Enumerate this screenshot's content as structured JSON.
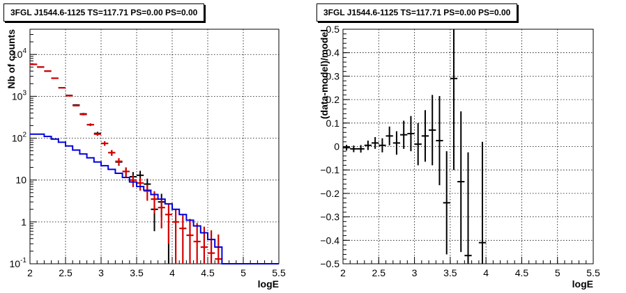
{
  "chart_data": [
    {
      "type": "scatter",
      "title": "3FGL J1544.6-1125 TS=117.71 PS=0.00 PS=0.00",
      "xlabel": "logE",
      "ylabel": "Nb of counts",
      "xlim": [
        2,
        5.5
      ],
      "ylim": [
        0.1,
        40000
      ],
      "yscale": "log",
      "grid": true,
      "x_ticks": [
        "2",
        "2.5",
        "3",
        "3.5",
        "4",
        "4.5",
        "5",
        "5.5"
      ],
      "y_ticks": [
        "10^{-1}",
        "1",
        "10",
        "10^{2}",
        "10^{3}",
        "10^{4}"
      ],
      "series": [
        {
          "color": "#000000",
          "kind": "data points with errors",
          "x": [
            2.05,
            2.15,
            2.25,
            2.35,
            2.45,
            2.55,
            2.65,
            2.75,
            2.85,
            2.95,
            3.05,
            3.15,
            3.25,
            3.35,
            3.45,
            3.55,
            3.65,
            3.75,
            3.85,
            3.95,
            4.05,
            4.15,
            4.25,
            4.35,
            4.45,
            4.55,
            4.65
          ],
          "y": [
            5800,
            5000,
            4000,
            2700,
            1600,
            1050,
            620,
            380,
            210,
            130,
            75,
            45,
            27,
            16,
            12,
            13,
            8,
            2,
            3,
            0.1,
            0.1,
            0.1,
            0.1,
            0.1,
            0.1,
            0.1,
            0.1
          ],
          "yerr_low": [
            80,
            70,
            60,
            50,
            40,
            30,
            25,
            20,
            15,
            12,
            9,
            7,
            5,
            4,
            3.5,
            3.6,
            2.8,
            1.4,
            1.7,
            0,
            0,
            0,
            0,
            0,
            0,
            0,
            0
          ],
          "yerr_high": [
            80,
            70,
            60,
            50,
            40,
            30,
            25,
            20,
            15,
            12,
            9,
            7,
            5,
            4,
            3.5,
            3.6,
            2.8,
            1.4,
            1.7,
            0.8,
            0,
            0,
            0,
            0,
            0,
            0,
            0
          ]
        },
        {
          "color": "#d40000",
          "kind": "model points with errors",
          "x": [
            2.05,
            2.15,
            2.25,
            2.35,
            2.45,
            2.55,
            2.65,
            2.75,
            2.85,
            2.95,
            3.05,
            3.15,
            3.25,
            3.35,
            3.45,
            3.55,
            3.65,
            3.75,
            3.85,
            3.95,
            4.05,
            4.15,
            4.25,
            4.35,
            4.45,
            4.55,
            4.65
          ],
          "y": [
            5800,
            5000,
            4000,
            2700,
            1600,
            1030,
            600,
            370,
            210,
            125,
            75,
            45,
            28,
            16,
            10,
            8.5,
            5.5,
            3.5,
            2.2,
            1.5,
            1.0,
            0.7,
            0.48,
            0.34,
            0.25,
            0.18,
            0.13
          ],
          "yerr_low": [
            75,
            70,
            63,
            52,
            40,
            32,
            24,
            19,
            14.5,
            11,
            8.7,
            6.7,
            5.3,
            4,
            3.2,
            2.9,
            2.3,
            1.9,
            1.5,
            1.2,
            0.9,
            0.6,
            0.38,
            0.24,
            0.15,
            0.08,
            0.03
          ],
          "yerr_high": [
            75,
            70,
            63,
            52,
            40,
            32,
            24,
            19,
            14.5,
            11,
            8.7,
            6.7,
            5.3,
            4,
            3.2,
            2.9,
            2.3,
            1.9,
            1.5,
            1.2,
            1.0,
            0.85,
            0.7,
            0.6,
            0.52,
            0.45,
            0.37
          ]
        },
        {
          "color": "#0000dd",
          "kind": "step histogram",
          "x_edges": [
            2.0,
            2.1,
            2.2,
            2.3,
            2.4,
            2.5,
            2.6,
            2.7,
            2.8,
            2.9,
            3.0,
            3.1,
            3.2,
            3.3,
            3.4,
            3.5,
            3.6,
            3.7,
            3.8,
            3.9,
            4.0,
            4.1,
            4.2,
            4.3,
            4.4,
            4.5,
            4.6,
            4.7,
            5.5
          ],
          "values": [
            125,
            125,
            110,
            95,
            80,
            65,
            52,
            42,
            34,
            27,
            22,
            18,
            14.5,
            11.5,
            9,
            7,
            5.7,
            4.5,
            3.5,
            2.7,
            2.0,
            1.5,
            1.1,
            0.8,
            0.55,
            0.38,
            0.25,
            0.1
          ]
        }
      ]
    },
    {
      "type": "scatter",
      "title": "3FGL J1544.6-1125 TS=117.71 PS=0.00 PS=0.00",
      "xlabel": "logE",
      "ylabel": "(data-model)/model",
      "xlim": [
        2,
        5.5
      ],
      "ylim": [
        -0.5,
        0.5
      ],
      "grid": true,
      "x_ticks": [
        "2",
        "2.5",
        "3",
        "3.5",
        "4",
        "4.5",
        "5",
        "5.5"
      ],
      "y_ticks": [
        "−0.5",
        "−0.4",
        "−0.3",
        "−0.2",
        "−0.1",
        "0",
        "0.1",
        "0.2",
        "0.3",
        "0.4",
        "0.5"
      ],
      "series": [
        {
          "color": "#000000",
          "x": [
            2.05,
            2.15,
            2.25,
            2.35,
            2.45,
            2.55,
            2.65,
            2.75,
            2.85,
            2.95,
            3.05,
            3.15,
            3.25,
            3.35,
            3.45,
            3.55,
            3.65,
            3.75,
            3.95
          ],
          "y": [
            -0.005,
            -0.01,
            -0.01,
            0.005,
            0.015,
            0.005,
            0.045,
            0.015,
            0.05,
            0.055,
            0.01,
            0.045,
            0.07,
            0.025,
            -0.24,
            0.29,
            -0.15,
            -0.465,
            -0.41
          ],
          "yerr": [
            0.012,
            0.014,
            0.016,
            0.02,
            0.025,
            0.03,
            0.04,
            0.05,
            0.06,
            0.075,
            0.09,
            0.11,
            0.15,
            0.19,
            0.22,
            0.39,
            0.3,
            0.44,
            0.43
          ]
        }
      ]
    }
  ]
}
